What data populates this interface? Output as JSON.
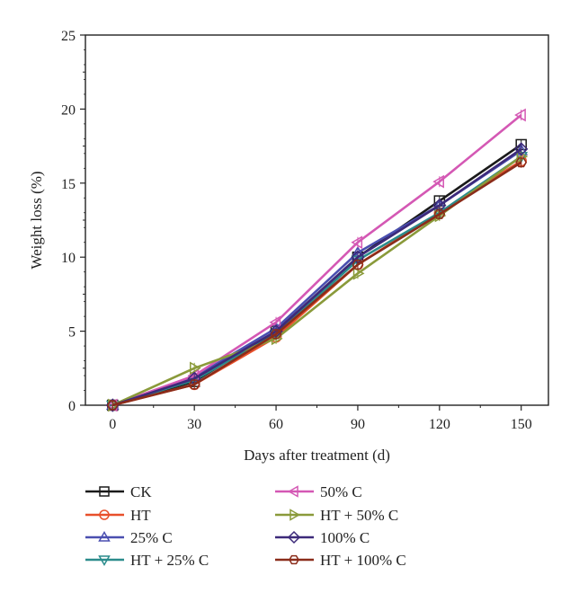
{
  "chart_data": {
    "type": "line",
    "title": "",
    "xlabel": "Days after treatment (d)",
    "ylabel": "Weight loss (%)",
    "x": [
      0,
      30,
      60,
      90,
      120,
      150
    ],
    "x_ticks": [
      "0",
      "30",
      "60",
      "90",
      "120",
      "150"
    ],
    "y_ticks": [
      "0",
      "5",
      "10",
      "15",
      "20",
      "25"
    ],
    "xlim": [
      -10,
      160
    ],
    "ylim": [
      0,
      25
    ],
    "grid": false,
    "legend_position": "bottom",
    "series": [
      {
        "name": "CK",
        "color": "#1a1a1a",
        "marker": "square",
        "values": [
          0,
          1.6,
          5.0,
          10.0,
          13.8,
          17.6
        ]
      },
      {
        "name": "HT",
        "color": "#e8502b",
        "marker": "circle",
        "values": [
          0,
          1.4,
          4.6,
          9.5,
          13.0,
          16.5
        ]
      },
      {
        "name": "25% C",
        "color": "#4a4fb0",
        "marker": "triangle-up",
        "values": [
          0,
          1.9,
          5.2,
          10.3,
          13.5,
          17.2
        ]
      },
      {
        "name": "HT + 25% C",
        "color": "#2b8c8c",
        "marker": "triangle-down",
        "values": [
          0,
          1.7,
          4.8,
          9.8,
          13.0,
          16.8
        ]
      },
      {
        "name": "50% C",
        "color": "#d458b4",
        "marker": "triangle-left",
        "values": [
          0,
          2.0,
          5.6,
          11.0,
          15.1,
          19.6
        ]
      },
      {
        "name": "HT + 50% C",
        "color": "#8a9a3a",
        "marker": "triangle-right",
        "values": [
          0,
          2.5,
          4.5,
          8.9,
          12.8,
          16.8
        ]
      },
      {
        "name": "100% C",
        "color": "#3d2a7a",
        "marker": "diamond",
        "values": [
          0,
          1.8,
          5.0,
          10.0,
          13.5,
          17.3
        ]
      },
      {
        "name": "HT + 100% C",
        "color": "#8b2c1a",
        "marker": "hexagon",
        "values": [
          0,
          1.4,
          4.8,
          9.5,
          12.9,
          16.4
        ]
      }
    ]
  }
}
